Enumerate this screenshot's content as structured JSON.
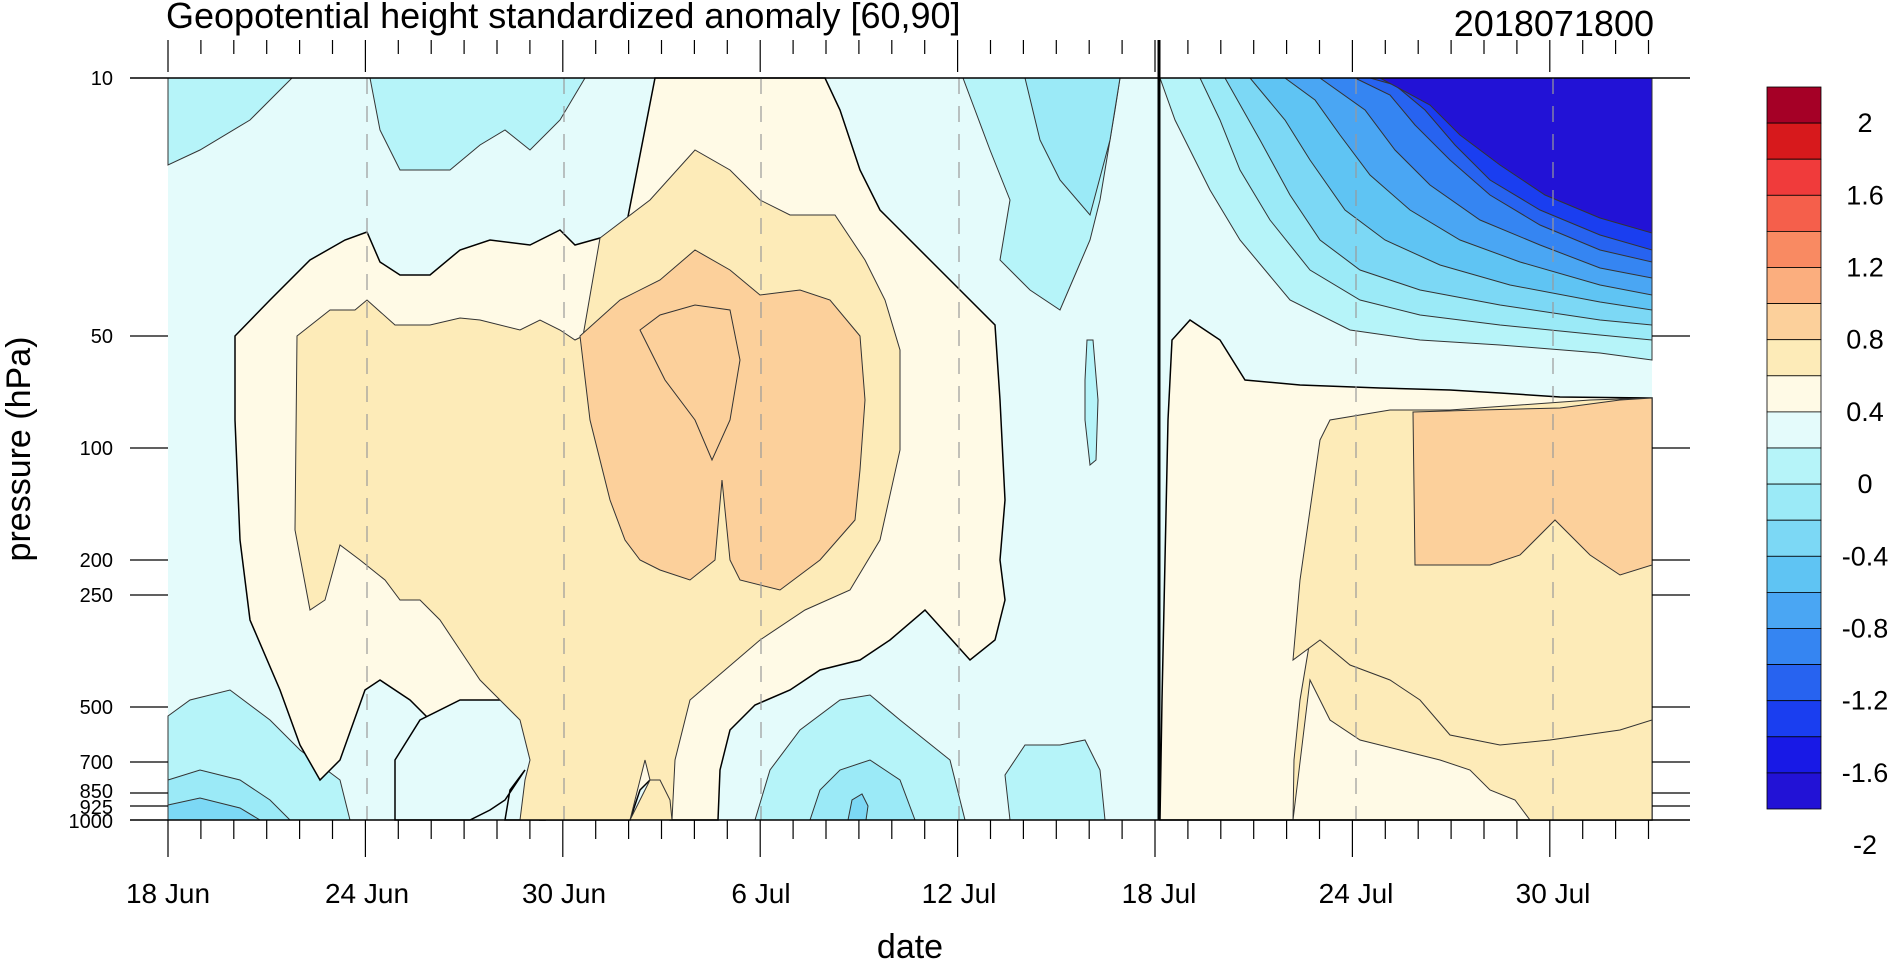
{
  "chart_data": {
    "type": "heatmap",
    "title": "Geopotential height standardized anomaly [60,90]",
    "subtitle": "2018071800",
    "xlabel": "date",
    "ylabel": "pressure (hPa)",
    "y_scale": "log",
    "y_reversed": true,
    "x_ticks": [
      "18 Jun",
      "24 Jun",
      "30 Jun",
      "6 Jul",
      "12 Jul",
      "18 Jul",
      "24 Jul",
      "30 Jul"
    ],
    "y_ticks": [
      "10",
      "50",
      "100",
      "200",
      "250",
      "500",
      "700",
      "850",
      "925",
      "1000"
    ],
    "highlight_date": "18 Jul",
    "colorbar": {
      "labels": [
        "2",
        "1.6",
        "1.2",
        "0.8",
        "0.4",
        "0",
        "-0.4",
        "-0.8",
        "-1.2",
        "-1.6",
        "-2"
      ],
      "colors": [
        "#a50026",
        "#d7191c",
        "#f03b3b",
        "#f55f4b",
        "#f98a62",
        "#fbae7e",
        "#fcd09b",
        "#fdebb8",
        "#fffae6",
        "#e4fbfb",
        "#b6f4f9",
        "#9beaf7",
        "#7cd8f5",
        "#5fc4f3",
        "#4aa6f3",
        "#3585f2",
        "#2763f0",
        "#1a3ef0",
        "#1819e6",
        "#2212d6"
      ]
    },
    "regions": [
      {
        "level": "-0.2",
        "color": "#b6f4f9"
      },
      {
        "level": "0",
        "color": "#fffae6"
      },
      {
        "level": "0.2",
        "color": "#fdebb8"
      },
      {
        "level": "0.4",
        "color": "#fcd09b"
      },
      {
        "level": "-0.4",
        "color": "#9beaf7"
      },
      {
        "level": "-1.0",
        "color": "#4aa6f3"
      },
      {
        "level": "-1.6",
        "color": "#2763f0"
      },
      {
        "level": "-2.2",
        "color": "#2212d6"
      }
    ]
  }
}
